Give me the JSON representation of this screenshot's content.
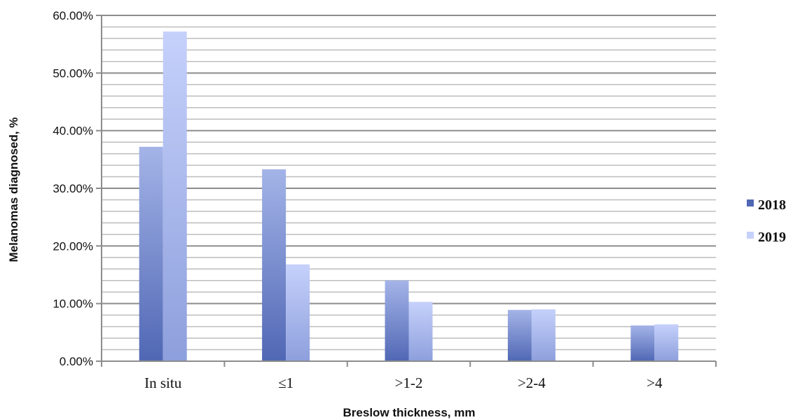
{
  "chart_data": {
    "type": "bar",
    "title": "",
    "xlabel": "Breslow thickness, mm",
    "ylabel": "Melanomas diagnosed, %",
    "categories": [
      "In situ",
      "≤1",
      ">1-2",
      ">2-4",
      ">4"
    ],
    "series": [
      {
        "name": "2018",
        "values": [
          37.2,
          33.3,
          14.0,
          8.9,
          6.2
        ],
        "color_top": "#a4b4e8",
        "color_bottom": "#5067b4"
      },
      {
        "name": "2019",
        "values": [
          57.2,
          16.8,
          10.3,
          9.0,
          6.4
        ],
        "color_top": "#c6d1fb",
        "color_bottom": "#8d9fdc"
      }
    ],
    "ylim": [
      0,
      60
    ],
    "y_ticks": [
      "0.00%",
      "10.00%",
      "20.00%",
      "30.00%",
      "40.00%",
      "50.00%",
      "60.00%"
    ],
    "y_tick_values": [
      0,
      10,
      20,
      30,
      40,
      50,
      60
    ],
    "minor_grid_step": 2,
    "grid": true,
    "legend_position": "right"
  }
}
